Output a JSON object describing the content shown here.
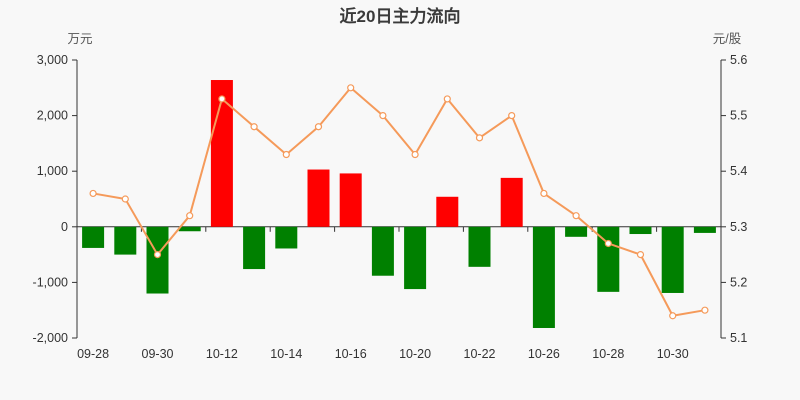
{
  "title": "近20日主力流向",
  "left_axis": {
    "name": "万元",
    "tick_labels": [
      "3,000",
      "2,000",
      "1,000",
      "0",
      "-1,000",
      "-2,000"
    ]
  },
  "right_axis": {
    "name": "元/股",
    "tick_labels": [
      "5.6",
      "5.5",
      "5.4",
      "5.3",
      "5.2",
      "5.1"
    ]
  },
  "palette": {
    "background": "#f8f8f8",
    "title_color": "#3a3a3a",
    "axis_line": "#333333",
    "tick_text": "#333333",
    "axis_unit_text": "#555555",
    "positive_bar": "#ff0000",
    "negative_bar": "#008000",
    "price_line": "#f59a5a",
    "marker_fill": "#ffffff"
  },
  "chart_data": {
    "type": "bar",
    "combo": "bar+line",
    "title": "近20日主力流向",
    "n_points": 20,
    "x_tick_labels": [
      "09-28",
      "09-30",
      "10-12",
      "10-14",
      "10-16",
      "10-20",
      "10-22",
      "10-26",
      "10-28",
      "10-30"
    ],
    "x_tick_label_indices": [
      0,
      2,
      4,
      6,
      8,
      10,
      12,
      14,
      16,
      18
    ],
    "grid": "off",
    "legend": "none",
    "bar_series": {
      "ylabel": "万元",
      "ylim": [
        -2000,
        3000
      ],
      "values": [
        -380,
        -500,
        -1200,
        -80,
        2640,
        -760,
        -390,
        1030,
        960,
        -880,
        -1120,
        540,
        -720,
        880,
        -1820,
        -180,
        -1170,
        -130,
        -1190,
        -110
      ]
    },
    "line_series": {
      "ylabel": "元/股",
      "ylim": [
        5.1,
        5.6
      ],
      "values": [
        5.36,
        5.35,
        5.25,
        5.32,
        5.53,
        5.48,
        5.43,
        5.48,
        5.55,
        5.5,
        5.43,
        5.53,
        5.46,
        5.5,
        5.36,
        5.32,
        5.27,
        5.25,
        5.14,
        5.15
      ]
    }
  }
}
